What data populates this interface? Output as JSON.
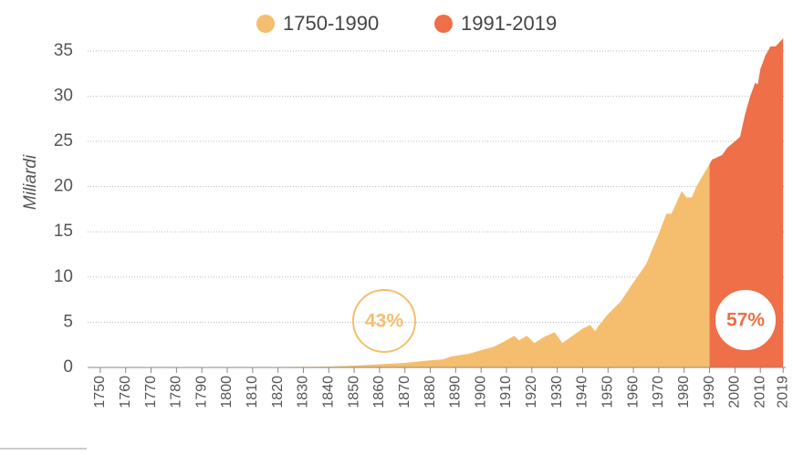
{
  "chart_data": {
    "type": "area",
    "y_label": "Miliardi",
    "xlim": [
      1745,
      2020
    ],
    "ylim": [
      0,
      36.5
    ],
    "xticks": [
      1750,
      1760,
      1770,
      1780,
      1790,
      1800,
      1810,
      1820,
      1830,
      1840,
      1850,
      1860,
      1870,
      1880,
      1890,
      1900,
      1910,
      1920,
      1930,
      1940,
      1950,
      1960,
      1970,
      1980,
      1990,
      2000,
      2010,
      2019
    ],
    "yticks": [
      0,
      5,
      10,
      15,
      20,
      25,
      30,
      35
    ],
    "grid": true,
    "legend": "top",
    "series": [
      {
        "name": "1750-1990",
        "color": "#f5be6e",
        "x": [
          1750,
          1760,
          1770,
          1780,
          1790,
          1800,
          1810,
          1820,
          1830,
          1840,
          1850,
          1860,
          1870,
          1880,
          1885,
          1888,
          1890,
          1895,
          1900,
          1905,
          1910,
          1913,
          1915,
          1918,
          1920,
          1921,
          1925,
          1929,
          1932,
          1935,
          1940,
          1943,
          1945,
          1946,
          1950,
          1955,
          1960,
          1965,
          1970,
          1973,
          1975,
          1979,
          1981,
          1983,
          1985,
          1990
        ],
        "values": [
          0.01,
          0.01,
          0.02,
          0.02,
          0.03,
          0.03,
          0.04,
          0.05,
          0.07,
          0.1,
          0.2,
          0.35,
          0.5,
          0.8,
          0.9,
          1.2,
          1.3,
          1.5,
          1.9,
          2.3,
          3.0,
          3.5,
          3.0,
          3.5,
          3.0,
          2.7,
          3.4,
          3.9,
          2.7,
          3.3,
          4.3,
          4.7,
          4.0,
          4.5,
          5.9,
          7.3,
          9.4,
          11.4,
          14.8,
          17.0,
          17.0,
          19.5,
          18.8,
          18.8,
          20.1,
          22.5
        ]
      },
      {
        "name": "1991-2019",
        "color": "#ee6f48",
        "x": [
          1990,
          1991,
          1992,
          1995,
          1997,
          2000,
          2002,
          2004,
          2006,
          2008,
          2009,
          2010,
          2012,
          2014,
          2016,
          2019
        ],
        "values": [
          22.5,
          23,
          23.1,
          23.5,
          24.3,
          25,
          25.5,
          28,
          30,
          31.5,
          31.3,
          33,
          34.5,
          35.5,
          35.5,
          36.4
        ]
      }
    ],
    "annotations": [
      "43%",
      "57%"
    ]
  }
}
